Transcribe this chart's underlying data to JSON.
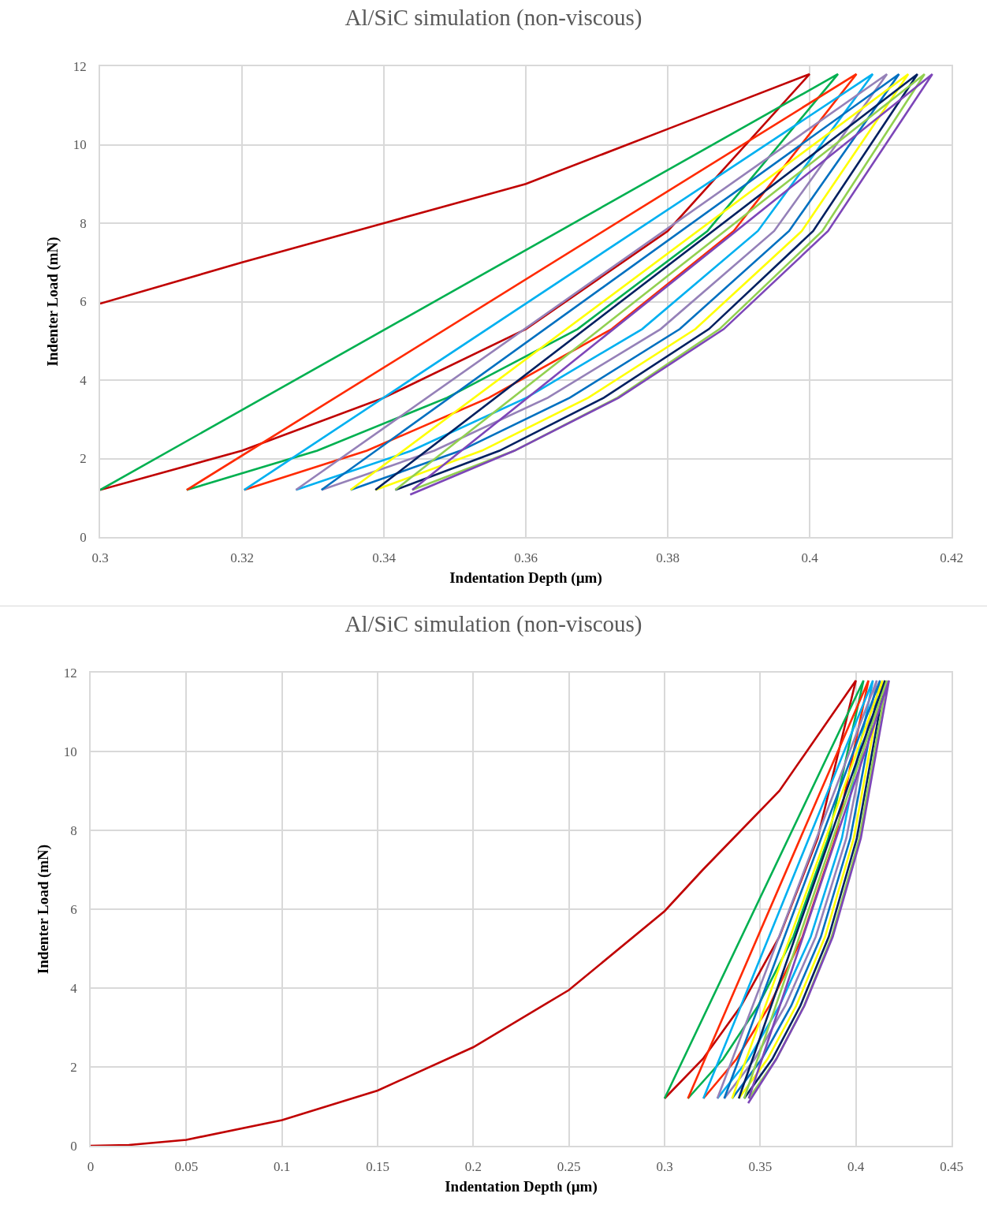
{
  "chart_data": [
    {
      "type": "line",
      "title": "Al/SiC simulation (non-viscous)",
      "xlabel": "Indentation Depth (µm)",
      "ylabel": "Indenter Load (mN)",
      "xlim": [
        0.3,
        0.42
      ],
      "xticks": [
        0.3,
        0.32,
        0.34,
        0.36,
        0.38,
        0.4,
        0.42
      ],
      "ylim": [
        0,
        12
      ],
      "yticks": [
        0,
        2,
        4,
        6,
        8,
        10,
        12
      ],
      "grid": true,
      "series": [
        {
          "color": "#c00000",
          "x": [
            0.3,
            0.32,
            0.34,
            0.36,
            0.38,
            0.4,
            0.38,
            0.36,
            0.34,
            0.32,
            0.3
          ],
          "values": [
            5.95,
            7.0,
            8.0,
            9.0,
            10.4,
            11.8,
            7.8,
            5.3,
            3.55,
            2.2,
            1.2
          ]
        },
        {
          "color": "#00b050",
          "x": [
            0.3,
            0.404,
            0.3856,
            0.3673,
            0.3489,
            0.3306,
            0.3122
          ],
          "values": [
            1.2,
            11.8,
            7.8,
            5.3,
            3.55,
            2.2,
            1.2
          ]
        },
        {
          "color": "#ff2a00",
          "x": [
            0.3122,
            0.4066,
            0.3893,
            0.3721,
            0.3548,
            0.3376,
            0.3203
          ],
          "values": [
            1.2,
            11.8,
            7.8,
            5.3,
            3.55,
            2.2,
            1.2
          ]
        },
        {
          "color": "#00b0f0",
          "x": [
            0.3203,
            0.4089,
            0.3927,
            0.3764,
            0.3601,
            0.3439,
            0.3276
          ],
          "values": [
            1.2,
            11.8,
            7.8,
            5.3,
            3.55,
            2.2,
            1.2
          ]
        },
        {
          "color": "#9581b8",
          "x": [
            0.3276,
            0.4109,
            0.395,
            0.379,
            0.3631,
            0.3471,
            0.3312
          ],
          "values": [
            1.2,
            11.8,
            7.8,
            5.3,
            3.55,
            2.2,
            1.2
          ]
        },
        {
          "color": "#0070c0",
          "x": [
            0.3312,
            0.4126,
            0.3971,
            0.3817,
            0.3662,
            0.3508,
            0.3353
          ],
          "values": [
            1.2,
            11.8,
            7.8,
            5.3,
            3.55,
            2.2,
            1.2
          ]
        },
        {
          "color": "#ffff00",
          "x": [
            0.3353,
            0.4139,
            0.3989,
            0.3839,
            0.3688,
            0.3538,
            0.3388
          ],
          "values": [
            1.2,
            11.8,
            7.8,
            5.3,
            3.55,
            2.2,
            1.2
          ]
        },
        {
          "color": "#002060",
          "x": [
            0.3388,
            0.4152,
            0.4005,
            0.3858,
            0.371,
            0.3563,
            0.3416
          ],
          "values": [
            1.2,
            11.8,
            7.8,
            5.3,
            3.55,
            2.2,
            1.2
          ]
        },
        {
          "color": "#92d050",
          "x": [
            0.3416,
            0.4162,
            0.4018,
            0.3873,
            0.3729,
            0.3584,
            0.344
          ],
          "values": [
            1.2,
            11.8,
            7.8,
            5.3,
            3.55,
            2.2,
            1.2
          ]
        },
        {
          "color": "#7d46b8",
          "x": [
            0.344,
            0.4173,
            0.4026,
            0.3879,
            0.3731,
            0.3584,
            0.3437
          ],
          "values": [
            1.2,
            11.8,
            7.8,
            5.3,
            3.55,
            2.2,
            1.08
          ]
        }
      ]
    },
    {
      "type": "line",
      "title": "Al/SiC simulation (non-viscous)",
      "xlabel": "Indentation Depth (µm)",
      "ylabel": "Indenter Load (mN)",
      "xlim": [
        0,
        0.45
      ],
      "xticks": [
        0,
        0.05,
        0.1,
        0.15,
        0.2,
        0.25,
        0.3,
        0.35,
        0.4,
        0.45
      ],
      "ylim": [
        0,
        12
      ],
      "yticks": [
        0,
        2,
        4,
        6,
        8,
        10,
        12
      ],
      "grid": true,
      "series": [
        {
          "color": "#c00000",
          "x": [
            0,
            0.02,
            0.05,
            0.1,
            0.15,
            0.2,
            0.25,
            0.3,
            0.32,
            0.34,
            0.36,
            0.38,
            0.4,
            0.38,
            0.36,
            0.34,
            0.32,
            0.3
          ],
          "values": [
            0,
            0.02,
            0.15,
            0.65,
            1.4,
            2.5,
            3.95,
            5.95,
            7.0,
            8.0,
            9.0,
            10.4,
            11.8,
            7.8,
            5.3,
            3.55,
            2.2,
            1.2
          ]
        },
        {
          "color": "#00b050",
          "x": [
            0.3,
            0.404,
            0.3856,
            0.3673,
            0.3489,
            0.3306,
            0.3122
          ],
          "values": [
            1.2,
            11.8,
            7.8,
            5.3,
            3.55,
            2.2,
            1.2
          ]
        },
        {
          "color": "#ff2a00",
          "x": [
            0.3122,
            0.4066,
            0.3893,
            0.3721,
            0.3548,
            0.3376,
            0.3203
          ],
          "values": [
            1.2,
            11.8,
            7.8,
            5.3,
            3.55,
            2.2,
            1.2
          ]
        },
        {
          "color": "#00b0f0",
          "x": [
            0.3203,
            0.4089,
            0.3927,
            0.3764,
            0.3601,
            0.3439,
            0.3276
          ],
          "values": [
            1.2,
            11.8,
            7.8,
            5.3,
            3.55,
            2.2,
            1.2
          ]
        },
        {
          "color": "#9581b8",
          "x": [
            0.3276,
            0.4109,
            0.395,
            0.379,
            0.3631,
            0.3471,
            0.3312
          ],
          "values": [
            1.2,
            11.8,
            7.8,
            5.3,
            3.55,
            2.2,
            1.2
          ]
        },
        {
          "color": "#0070c0",
          "x": [
            0.3312,
            0.4126,
            0.3971,
            0.3817,
            0.3662,
            0.3508,
            0.3353
          ],
          "values": [
            1.2,
            11.8,
            7.8,
            5.3,
            3.55,
            2.2,
            1.2
          ]
        },
        {
          "color": "#ffff00",
          "x": [
            0.3353,
            0.4139,
            0.3989,
            0.3839,
            0.3688,
            0.3538,
            0.3388
          ],
          "values": [
            1.2,
            11.8,
            7.8,
            5.3,
            3.55,
            2.2,
            1.2
          ]
        },
        {
          "color": "#002060",
          "x": [
            0.3388,
            0.4152,
            0.4005,
            0.3858,
            0.371,
            0.3563,
            0.3416
          ],
          "values": [
            1.2,
            11.8,
            7.8,
            5.3,
            3.55,
            2.2,
            1.2
          ]
        },
        {
          "color": "#92d050",
          "x": [
            0.3416,
            0.4162,
            0.4018,
            0.3873,
            0.3729,
            0.3584,
            0.344
          ],
          "values": [
            1.2,
            11.8,
            7.8,
            5.3,
            3.55,
            2.2,
            1.2
          ]
        },
        {
          "color": "#7d46b8",
          "x": [
            0.344,
            0.4173,
            0.4026,
            0.3879,
            0.3731,
            0.3584,
            0.3437
          ],
          "values": [
            1.2,
            11.8,
            7.8,
            5.3,
            3.55,
            2.2,
            1.08
          ]
        }
      ]
    }
  ]
}
